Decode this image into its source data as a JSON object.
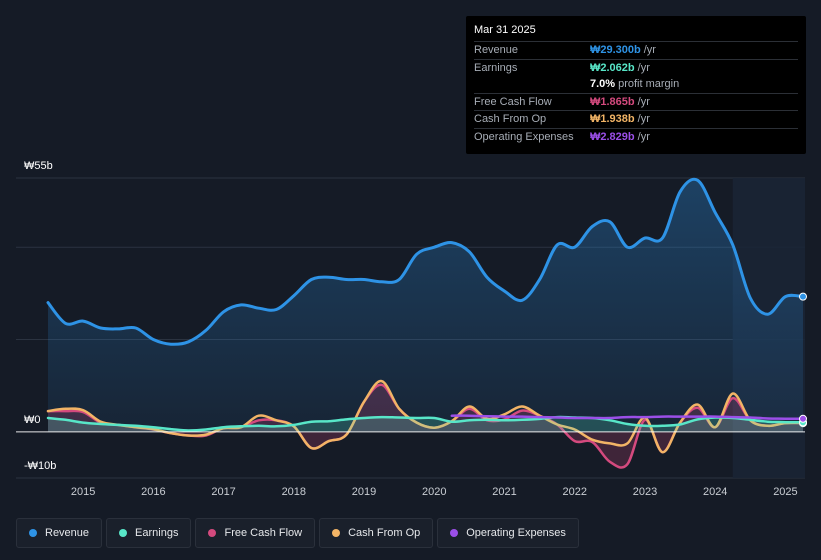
{
  "colors": {
    "revenue": "#2e93e6",
    "earnings": "#58e6c8",
    "free_cash_flow": "#d44a7e",
    "cash_from_op": "#f2b466",
    "operating_expenses": "#9b4fe8",
    "background": "#151b26"
  },
  "tooltip": {
    "date": "Mar 31 2025",
    "rows": [
      {
        "label": "Revenue",
        "value": "₩29.300b",
        "unit": "/yr",
        "color": "#2e93e6"
      },
      {
        "label": "Earnings",
        "value": "₩2.062b",
        "unit": "/yr",
        "color": "#58e6c8"
      },
      {
        "label": "",
        "value": "7.0%",
        "unit": "profit margin",
        "color": "#ffffff"
      },
      {
        "label": "Free Cash Flow",
        "value": "₩1.865b",
        "unit": "/yr",
        "color": "#d44a7e"
      },
      {
        "label": "Cash From Op",
        "value": "₩1.938b",
        "unit": "/yr",
        "color": "#f2b466"
      },
      {
        "label": "Operating Expenses",
        "value": "₩2.829b",
        "unit": "/yr",
        "color": "#9b4fe8"
      }
    ]
  },
  "legend": [
    {
      "label": "Revenue",
      "color": "#2e93e6"
    },
    {
      "label": "Earnings",
      "color": "#58e6c8"
    },
    {
      "label": "Free Cash Flow",
      "color": "#d44a7e"
    },
    {
      "label": "Cash From Op",
      "color": "#f2b466"
    },
    {
      "label": "Operating Expenses",
      "color": "#9b4fe8"
    }
  ],
  "chart_data": {
    "type": "area",
    "title": "",
    "xlabel": "",
    "ylabel": "",
    "units": "KRW billions",
    "y_axis_labels": [
      "₩55b",
      "₩0",
      "-₩10b"
    ],
    "ylim": [
      -10,
      55
    ],
    "xlim": [
      2014.5,
      2025.25
    ],
    "x_tick_labels": [
      "2015",
      "2016",
      "2017",
      "2018",
      "2019",
      "2020",
      "2021",
      "2022",
      "2023",
      "2024",
      "2025"
    ],
    "x_ticks": [
      2015,
      2016,
      2017,
      2018,
      2019,
      2020,
      2021,
      2022,
      2023,
      2024,
      2025
    ],
    "forecast_start": 2024.25,
    "series": [
      {
        "name": "Revenue",
        "key": "revenue",
        "fill": true,
        "x": [
          2014.5,
          2014.75,
          2015.0,
          2015.25,
          2015.5,
          2015.75,
          2016.0,
          2016.25,
          2016.5,
          2016.75,
          2017.0,
          2017.25,
          2017.5,
          2017.75,
          2018.0,
          2018.25,
          2018.5,
          2018.75,
          2019.0,
          2019.25,
          2019.5,
          2019.75,
          2020.0,
          2020.25,
          2020.5,
          2020.75,
          2021.0,
          2021.25,
          2021.5,
          2021.75,
          2022.0,
          2022.25,
          2022.5,
          2022.75,
          2023.0,
          2023.25,
          2023.5,
          2023.75,
          2024.0,
          2024.25,
          2024.5,
          2024.75,
          2025.0,
          2025.25
        ],
        "values": [
          28.0,
          23.5,
          24.0,
          22.5,
          22.3,
          22.5,
          20.0,
          19.0,
          19.5,
          22.0,
          26.0,
          27.5,
          26.8,
          26.5,
          29.5,
          33.0,
          33.5,
          33.0,
          33.0,
          32.5,
          33.0,
          38.5,
          40.0,
          41.0,
          39.0,
          33.5,
          30.5,
          28.5,
          33.0,
          40.5,
          40.0,
          44.5,
          45.5,
          40.0,
          42.0,
          42.0,
          52.0,
          54.5,
          47.5,
          40.5,
          29.0,
          25.5,
          29.3,
          29.3
        ]
      },
      {
        "name": "Earnings",
        "key": "earnings",
        "fill": true,
        "x": [
          2014.5,
          2014.75,
          2015.0,
          2015.25,
          2015.5,
          2015.75,
          2016.0,
          2016.25,
          2016.5,
          2016.75,
          2017.0,
          2017.25,
          2017.5,
          2017.75,
          2018.0,
          2018.25,
          2018.5,
          2018.75,
          2019.0,
          2019.25,
          2019.5,
          2019.75,
          2020.0,
          2020.25,
          2020.5,
          2020.75,
          2021.0,
          2021.25,
          2021.5,
          2021.75,
          2022.0,
          2022.25,
          2022.5,
          2022.75,
          2023.0,
          2023.25,
          2023.5,
          2023.75,
          2024.0,
          2024.25,
          2024.5,
          2024.75,
          2025.0,
          2025.25
        ],
        "values": [
          3.0,
          2.6,
          2.0,
          1.7,
          1.5,
          1.3,
          1.0,
          0.6,
          0.3,
          0.5,
          1.0,
          1.2,
          1.3,
          1.2,
          1.5,
          2.2,
          2.3,
          2.7,
          3.0,
          3.2,
          3.1,
          3.0,
          3.0,
          2.2,
          2.5,
          2.6,
          2.5,
          2.6,
          2.8,
          3.2,
          3.1,
          3.0,
          2.5,
          1.7,
          1.3,
          1.3,
          1.6,
          2.7,
          3.1,
          3.0,
          2.6,
          2.2,
          2.1,
          2.06
        ]
      },
      {
        "name": "Free Cash Flow",
        "key": "free_cash_flow",
        "fill": true,
        "x": [
          2014.5,
          2014.75,
          2015.0,
          2015.25,
          2015.5,
          2015.75,
          2016.0,
          2016.25,
          2016.5,
          2016.75,
          2017.0,
          2017.25,
          2017.5,
          2017.75,
          2018.0,
          2018.25,
          2018.5,
          2018.75,
          2019.0,
          2019.25,
          2019.5,
          2019.75,
          2020.0,
          2020.25,
          2020.5,
          2020.75,
          2021.0,
          2021.25,
          2021.5,
          2021.75,
          2022.0,
          2022.25,
          2022.5,
          2022.75,
          2023.0,
          2023.25,
          2023.5,
          2023.75,
          2024.0,
          2024.25,
          2024.5,
          2024.75,
          2025.0,
          2025.25
        ],
        "values": [
          4.5,
          4.5,
          4.3,
          2.0,
          1.5,
          1.0,
          0.5,
          -0.3,
          -0.8,
          -0.8,
          0.8,
          1.0,
          2.5,
          2.5,
          1.2,
          -3.5,
          -2.0,
          -0.6,
          6.5,
          10.2,
          5.0,
          2.0,
          0.9,
          2.3,
          5.0,
          2.5,
          2.7,
          4.6,
          3.5,
          1.6,
          -2.0,
          -2.2,
          -6.5,
          -7.0,
          2.6,
          -4.4,
          2.0,
          5.2,
          1.0,
          7.3,
          2.5,
          1.3,
          1.9,
          1.87
        ]
      },
      {
        "name": "Cash From Op",
        "key": "cash_from_op",
        "fill": false,
        "x": [
          2014.5,
          2014.75,
          2015.0,
          2015.25,
          2015.5,
          2015.75,
          2016.0,
          2016.25,
          2016.5,
          2016.75,
          2017.0,
          2017.25,
          2017.5,
          2017.75,
          2018.0,
          2018.25,
          2018.5,
          2018.75,
          2019.0,
          2019.25,
          2019.5,
          2019.75,
          2020.0,
          2020.25,
          2020.5,
          2020.75,
          2021.0,
          2021.25,
          2021.5,
          2021.75,
          2022.0,
          2022.25,
          2022.5,
          2022.75,
          2023.0,
          2023.25,
          2023.5,
          2023.75,
          2024.0,
          2024.25,
          2024.5,
          2024.75,
          2025.0,
          2025.25
        ],
        "values": [
          4.5,
          5.0,
          4.7,
          2.2,
          1.5,
          1.0,
          0.6,
          -0.3,
          -0.8,
          -0.6,
          0.8,
          1.0,
          3.5,
          2.5,
          1.2,
          -3.5,
          -2.0,
          -0.6,
          6.5,
          11.0,
          5.0,
          2.0,
          0.9,
          2.3,
          5.5,
          2.8,
          3.8,
          5.5,
          3.5,
          1.6,
          0.5,
          -1.7,
          -2.5,
          -2.5,
          3.1,
          -4.4,
          2.0,
          5.9,
          1.0,
          8.3,
          2.5,
          1.3,
          1.9,
          1.94
        ]
      },
      {
        "name": "Operating Expenses",
        "key": "operating_expenses",
        "fill": false,
        "x": [
          2020.25,
          2020.5,
          2020.75,
          2021.0,
          2021.25,
          2021.5,
          2021.75,
          2022.0,
          2022.25,
          2022.5,
          2022.75,
          2023.0,
          2023.25,
          2023.5,
          2023.75,
          2024.0,
          2024.25,
          2024.5,
          2024.75,
          2025.0,
          2025.25
        ],
        "values": [
          3.5,
          3.5,
          3.4,
          3.3,
          3.3,
          3.2,
          3.1,
          3.0,
          3.0,
          3.0,
          3.2,
          3.2,
          3.3,
          3.3,
          3.3,
          3.3,
          3.2,
          3.1,
          2.9,
          2.85,
          2.83
        ]
      }
    ]
  }
}
